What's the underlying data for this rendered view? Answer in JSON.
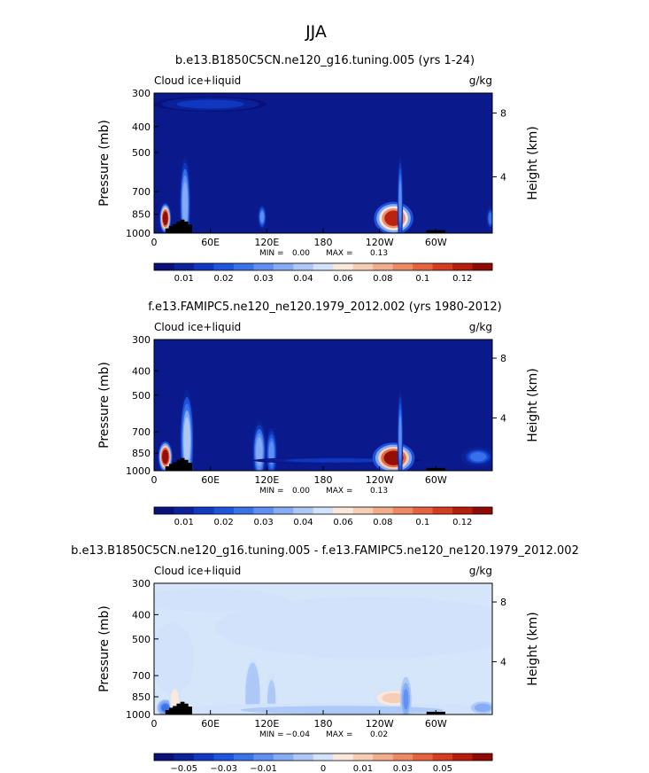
{
  "page": {
    "title": "JJA"
  },
  "chart_data": [
    {
      "type": "heatmap",
      "title": "b.e13.B1850C5CN.ne120_g16.tuning.005 (yrs 1-24)",
      "variable_label": "Cloud ice+liquid",
      "units_label": "g/kg",
      "ylabel": "Pressure (mb)",
      "ylabel_right": "Height (km)",
      "x_ticks": [
        "0",
        "60E",
        "120E",
        "180",
        "120W",
        "60W"
      ],
      "y_ticks": [
        "300",
        "400",
        "500",
        "700",
        "850",
        "1000"
      ],
      "y_right_ticks": [
        "8",
        "4"
      ],
      "stats": {
        "min_label": "MIN =",
        "min": "0.00",
        "max_label": "MAX =",
        "max": "0.13"
      },
      "colorbar_labels": [
        "0.01",
        "0.02",
        "0.03",
        "0.04",
        "0.06",
        "0.08",
        "0.1",
        "0.12"
      ],
      "colorbar_colors": [
        "#0a0f7a",
        "#0c2299",
        "#1038c0",
        "#1f54dd",
        "#3a72e8",
        "#5f8ff0",
        "#86acf4",
        "#adc8f7",
        "#d2e2fa",
        "#f9e8dc",
        "#f6cdb5",
        "#f2ad8d",
        "#ee8a63",
        "#e6633d",
        "#d63d20",
        "#b81c0c",
        "#8f0905"
      ],
      "background_color": "#0a1a8c",
      "features": [
        {
          "x": 12,
          "p": 880,
          "rx": 4,
          "ry": 50,
          "value": 0.13
        },
        {
          "x": 33,
          "p": 780,
          "rx": 4,
          "ry": 160,
          "value": 0.05
        },
        {
          "x": 115,
          "p": 870,
          "rx": 3,
          "ry": 40,
          "value": 0.04
        },
        {
          "x": 255,
          "p": 880,
          "rx": 14,
          "ry": 55,
          "value": 0.12
        },
        {
          "x": 262,
          "p": 760,
          "rx": 2,
          "ry": 150,
          "value": 0.04
        },
        {
          "x": 60,
          "p": 330,
          "rx": 40,
          "ry": 25,
          "value": 0.02
        },
        {
          "x": 358,
          "p": 880,
          "rx": 3,
          "ry": 40,
          "value": 0.03
        }
      ]
    },
    {
      "type": "heatmap",
      "title": "f.e13.FAMIPC5.ne120_ne120.1979_2012.002 (yrs 1980-2012)",
      "variable_label": "Cloud ice+liquid",
      "units_label": "g/kg",
      "ylabel": "Pressure (mb)",
      "ylabel_right": "Height (km)",
      "x_ticks": [
        "0",
        "60E",
        "120E",
        "180",
        "120W",
        "60W"
      ],
      "y_ticks": [
        "300",
        "400",
        "500",
        "700",
        "850",
        "1000"
      ],
      "y_right_ticks": [
        "8",
        "4"
      ],
      "stats": {
        "min_label": "MIN =",
        "min": "0.00",
        "max_label": "MAX =",
        "max": "0.13"
      },
      "colorbar_labels": [
        "0.01",
        "0.02",
        "0.03",
        "0.04",
        "0.06",
        "0.08",
        "0.1",
        "0.12"
      ],
      "colorbar_colors": [
        "#0a0f7a",
        "#0c2299",
        "#1038c0",
        "#1f54dd",
        "#3a72e8",
        "#5f8ff0",
        "#86acf4",
        "#adc8f7",
        "#d2e2fa",
        "#f9e8dc",
        "#f6cdb5",
        "#f2ad8d",
        "#ee8a63",
        "#e6633d",
        "#d63d20",
        "#b81c0c",
        "#8f0905"
      ],
      "background_color": "#0a1a8c",
      "features": [
        {
          "x": 12,
          "p": 880,
          "rx": 5,
          "ry": 55,
          "value": 0.13
        },
        {
          "x": 35,
          "p": 760,
          "rx": 5,
          "ry": 180,
          "value": 0.06
        },
        {
          "x": 112,
          "p": 840,
          "rx": 5,
          "ry": 110,
          "value": 0.05
        },
        {
          "x": 125,
          "p": 850,
          "rx": 4,
          "ry": 90,
          "value": 0.04
        },
        {
          "x": 195,
          "p": 910,
          "rx": 60,
          "ry": 12,
          "value": 0.02
        },
        {
          "x": 255,
          "p": 890,
          "rx": 15,
          "ry": 55,
          "value": 0.13
        },
        {
          "x": 262,
          "p": 740,
          "rx": 2,
          "ry": 170,
          "value": 0.04
        },
        {
          "x": 345,
          "p": 880,
          "rx": 12,
          "ry": 35,
          "value": 0.03
        }
      ]
    },
    {
      "type": "heatmap",
      "title": "b.e13.B1850C5CN.ne120_g16.tuning.005 - f.e13.FAMIPC5.ne120_ne120.1979_2012.002",
      "variable_label": "Cloud ice+liquid",
      "units_label": "g/kg",
      "ylabel": "Pressure (mb)",
      "ylabel_right": "Height (km)",
      "x_ticks": [
        "0",
        "60E",
        "120E",
        "180",
        "120W",
        "60W"
      ],
      "y_ticks": [
        "300",
        "400",
        "500",
        "700",
        "850",
        "1000"
      ],
      "y_right_ticks": [
        "8",
        "4"
      ],
      "stats": {
        "min_label": "MIN =",
        "min": "−0.04",
        "max_label": "MAX =",
        "max": "0.02"
      },
      "colorbar_labels": [
        "−0.05",
        "−0.03",
        "−0.01",
        "0",
        "0.01",
        "0.03",
        "0.05"
      ],
      "colorbar_colors": [
        "#0a0f7a",
        "#0c2299",
        "#1038c0",
        "#1f54dd",
        "#3a72e8",
        "#5f8ff0",
        "#86acf4",
        "#adc8f7",
        "#d2e2fa",
        "#f9e8dc",
        "#f6cdb5",
        "#f2ad8d",
        "#ee8a63",
        "#e6633d",
        "#d63d20",
        "#b81c0c",
        "#8f0905"
      ],
      "background_color": "#d6e6fa",
      "features": [
        {
          "x": 60,
          "p": 350,
          "rx": 55,
          "ry": 40,
          "value": 0.003
        },
        {
          "x": 230,
          "p": 450,
          "rx": 110,
          "ry": 110,
          "value": 0.003
        },
        {
          "x": 20,
          "p": 600,
          "rx": 15,
          "ry": 130,
          "value": 0.002
        },
        {
          "x": 105,
          "p": 850,
          "rx": 6,
          "ry": 140,
          "value": -0.015
        },
        {
          "x": 125,
          "p": 880,
          "rx": 4,
          "ry": 100,
          "value": -0.01
        },
        {
          "x": 200,
          "p": 960,
          "rx": 120,
          "ry": 25,
          "value": -0.008
        },
        {
          "x": 255,
          "p": 860,
          "rx": 14,
          "ry": 30,
          "value": 0.02
        },
        {
          "x": 268,
          "p": 870,
          "rx": 4,
          "ry": 80,
          "value": -0.03
        },
        {
          "x": 12,
          "p": 940,
          "rx": 6,
          "ry": 30,
          "value": -0.04
        },
        {
          "x": 22,
          "p": 870,
          "rx": 4,
          "ry": 50,
          "value": 0.01
        },
        {
          "x": 350,
          "p": 940,
          "rx": 10,
          "ry": 25,
          "value": -0.02
        }
      ]
    }
  ]
}
